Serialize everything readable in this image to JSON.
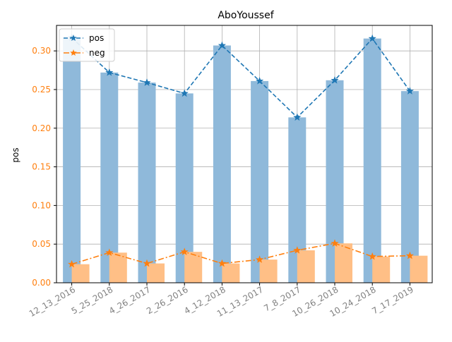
{
  "chart_data": {
    "type": "bar",
    "title": "AboYoussef",
    "xlabel": "",
    "ylabel": "pos",
    "ylim": [
      0,
      0.333
    ],
    "yticks": [
      "0.00",
      "0.05",
      "0.10",
      "0.15",
      "0.20",
      "0.25",
      "0.30"
    ],
    "yticks_values": [
      0,
      0.05,
      0.1,
      0.15,
      0.2,
      0.25,
      0.3
    ],
    "categories": [
      "12_13_2016",
      "5_25_2018",
      "4_26_2017",
      "2_26_2016",
      "4_12_2018",
      "11_13_2017",
      "7_8_2017",
      "10_26_2018",
      "10_24_2018",
      "7_17_2019"
    ],
    "grid": true,
    "legend_position": "top-left",
    "series": [
      {
        "name": "pos",
        "values": [
          0.317,
          0.272,
          0.259,
          0.245,
          0.307,
          0.261,
          0.214,
          0.262,
          0.316,
          0.248
        ],
        "bar_color": "#8fb9da",
        "line_color": "#1f77b4",
        "line_style": "dashed",
        "marker": "star"
      },
      {
        "name": "neg",
        "values": [
          0.024,
          0.039,
          0.025,
          0.04,
          0.025,
          0.03,
          0.042,
          0.051,
          0.034,
          0.035
        ],
        "bar_color": "#ffbf86",
        "line_color": "#ff7f0e",
        "line_style": "dashdot",
        "marker": "star"
      }
    ],
    "colors": {
      "tick_label": "#ff7f0e",
      "xtick_label": "#808080",
      "grid": "#b0b0b0",
      "axis": "#000000"
    }
  }
}
